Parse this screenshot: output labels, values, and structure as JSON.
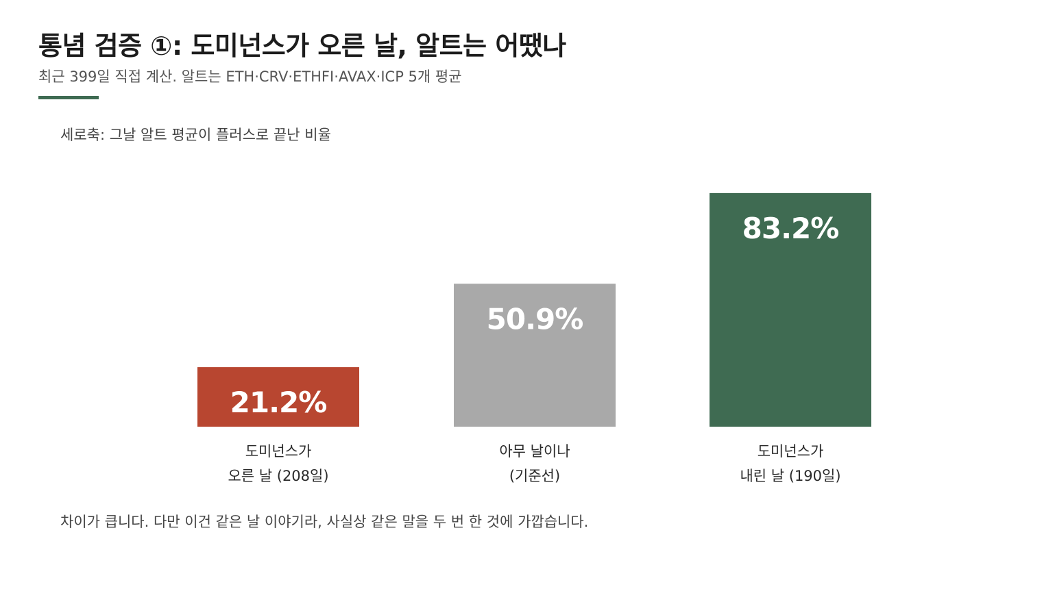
{
  "header": {
    "title": "통념 검증 ①: 도미넌스가 오른 날, 알트는 어땠나",
    "subtitle": "최근 399일 직접 계산. 알트는 ETH·CRV·ETHFI·AVAX·ICP 5개 평균"
  },
  "axis_note": "세로축: 그날 알트 평균이 플러스로 끝난 비율",
  "footnote": "차이가 큽니다. 다만 이건 같은 날 이야기라, 사실상 같은 말을 두 번 한 것에 가깝습니다.",
  "colors": {
    "accent": "#3f6b52",
    "bar_up_day": "#b84630",
    "bar_baseline": "#a9a9a9",
    "bar_down_day": "#3f6b52"
  },
  "chart_data": {
    "type": "bar",
    "ylabel": "세로축: 그날 알트 평균이 플러스로 끝난 비율",
    "ylim": [
      0,
      100
    ],
    "grid": false,
    "categories": [
      [
        "도미넌스가",
        "오른 날 (208일)"
      ],
      [
        "아무 날이나",
        "(기준선)"
      ],
      [
        "도미넌스가",
        "내린 날 (190일)"
      ]
    ],
    "values": [
      21.2,
      50.9,
      83.2
    ],
    "value_labels": [
      "21.2%",
      "50.9%",
      "83.2%"
    ],
    "colors": [
      "#b84630",
      "#a9a9a9",
      "#3f6b52"
    ]
  }
}
